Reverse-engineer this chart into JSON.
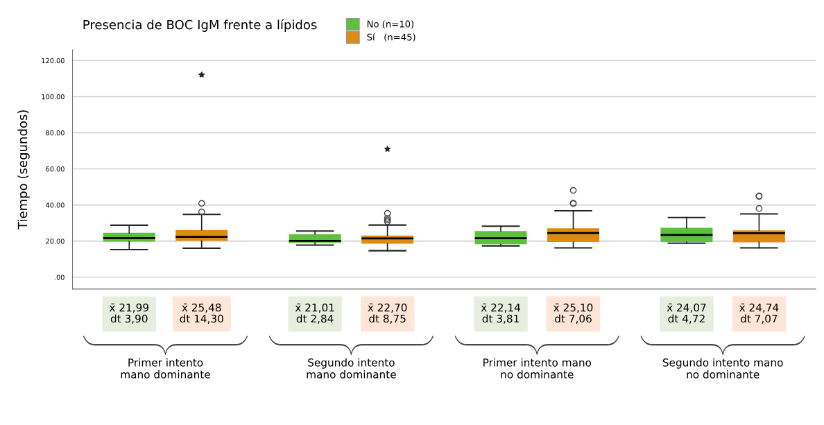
{
  "chart_data": {
    "type": "box",
    "title": "Presencia de BOC IgM frente a lípidos",
    "ylabel": "Tiempo (segundos)",
    "categories": [
      "Primer intento\nmano dominante",
      "Segundo intento\nmano dominante",
      "Primer intento mano\nno dominante",
      "Segundo intento mano\nno dominante"
    ],
    "series": [
      {
        "name": "No (n=10)",
        "color": "#5ec13b",
        "boxes": [
          {
            "low": 15.3,
            "q1": 19.7,
            "median": 21.7,
            "q3": 24.6,
            "high": 28.8
          },
          {
            "low": 17.8,
            "q1": 19.1,
            "median": 20.2,
            "q3": 23.9,
            "high": 25.6
          },
          {
            "low": 17.4,
            "q1": 18.3,
            "median": 21.6,
            "q3": 25.6,
            "high": 28.3
          },
          {
            "low": 18.9,
            "q1": 19.5,
            "median": 23.4,
            "q3": 27.4,
            "high": 33.1
          }
        ]
      },
      {
        "name": "Sí   (n=45)",
        "color": "#e08a12",
        "boxes": [
          {
            "low": 16.1,
            "q1": 20.2,
            "median": 22.4,
            "q3": 26.2,
            "high": 34.8,
            "outliers": [
              36.2,
              40.9,
              112.1
            ]
          },
          {
            "low": 14.7,
            "q1": 18.6,
            "median": 21.5,
            "q3": 23.1,
            "high": 28.9,
            "outliers": [
              30.8,
              31.7,
              32.6,
              35.4,
              71.0
            ]
          },
          {
            "low": 16.3,
            "q1": 19.5,
            "median": 24.5,
            "q3": 27.1,
            "high": 36.8,
            "outliers": [
              40.8,
              41.0,
              48.1
            ]
          },
          {
            "low": 16.3,
            "q1": 19.4,
            "median": 24.4,
            "q3": 26.0,
            "high": 35.1,
            "outliers": [
              38.1,
              44.8,
              45.0
            ]
          }
        ]
      }
    ],
    "ylim": [
      -6.5,
      126
    ],
    "yticks": [
      {
        "value": 0,
        "label": ".00"
      },
      {
        "value": 20,
        "label": "20.00"
      },
      {
        "value": 40,
        "label": "40.00"
      },
      {
        "value": 60,
        "label": "60.00"
      },
      {
        "value": 80,
        "label": "80.00"
      },
      {
        "value": 100,
        "label": "100.00"
      },
      {
        "value": 120,
        "label": "120.00"
      }
    ],
    "grid": "y",
    "legend": "top",
    "annotations": [
      "x̄ 21,99\ndt 3,90",
      "x̄ 25,48\ndt 14,30",
      "x̄ 21,01\ndt 2,84",
      "x̄ 22,70\ndt 8,75",
      "x̄ 22,14\ndt 3,81",
      "x̄ 25,10\ndt 7,06",
      "x̄ 24,07\ndt 4,72",
      "x̄ 24,74\ndt 7,07"
    ]
  }
}
